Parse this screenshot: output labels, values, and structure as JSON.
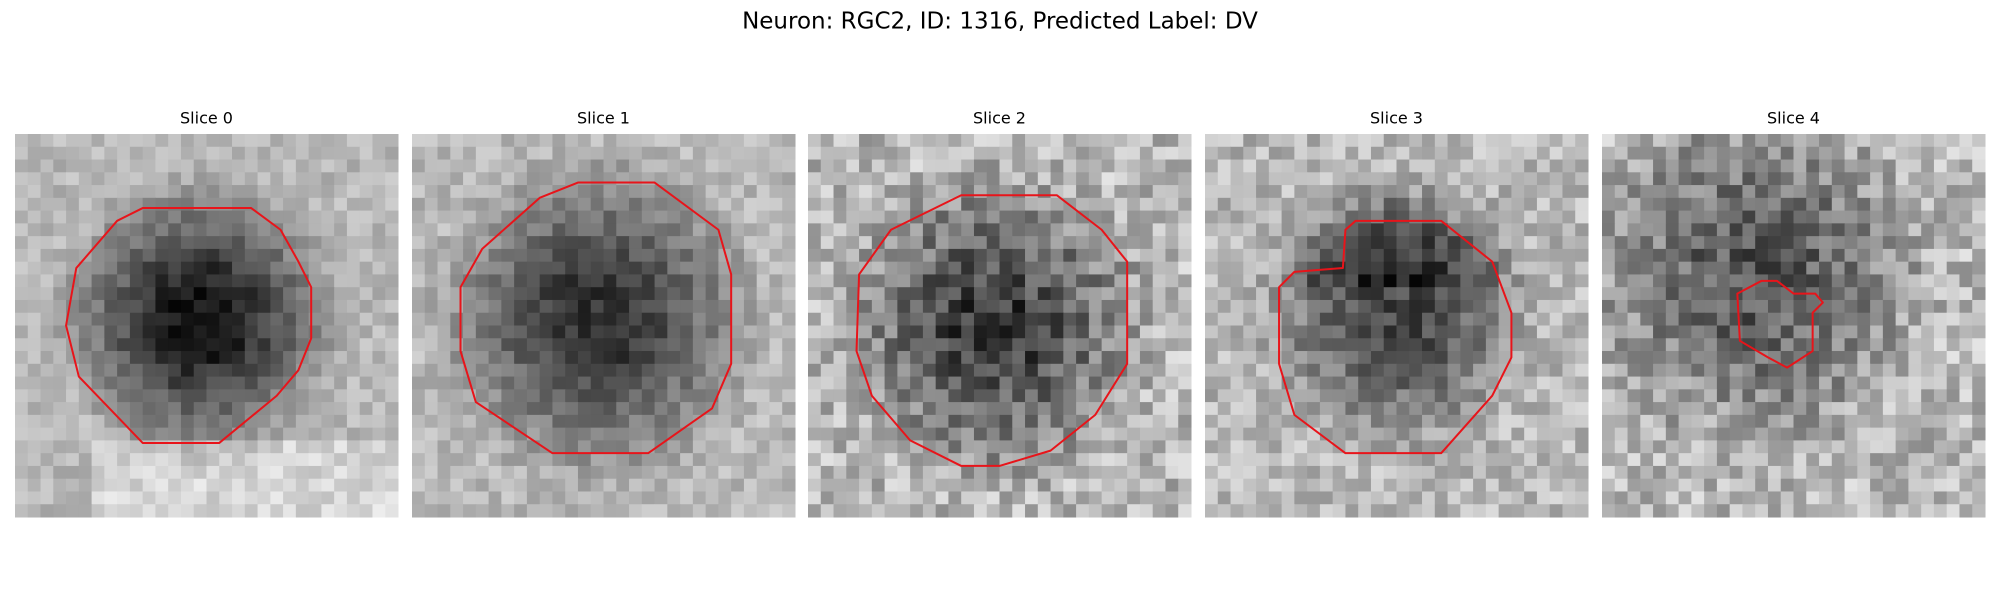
{
  "figure": {
    "title": "Neuron: RGC2, ID: 1316, Predicted Label: DV",
    "panels": [
      {
        "label": "Slice 0"
      },
      {
        "label": "Slice 1"
      },
      {
        "label": "Slice 2"
      },
      {
        "label": "Slice 3"
      },
      {
        "label": "Slice 4"
      }
    ]
  }
}
